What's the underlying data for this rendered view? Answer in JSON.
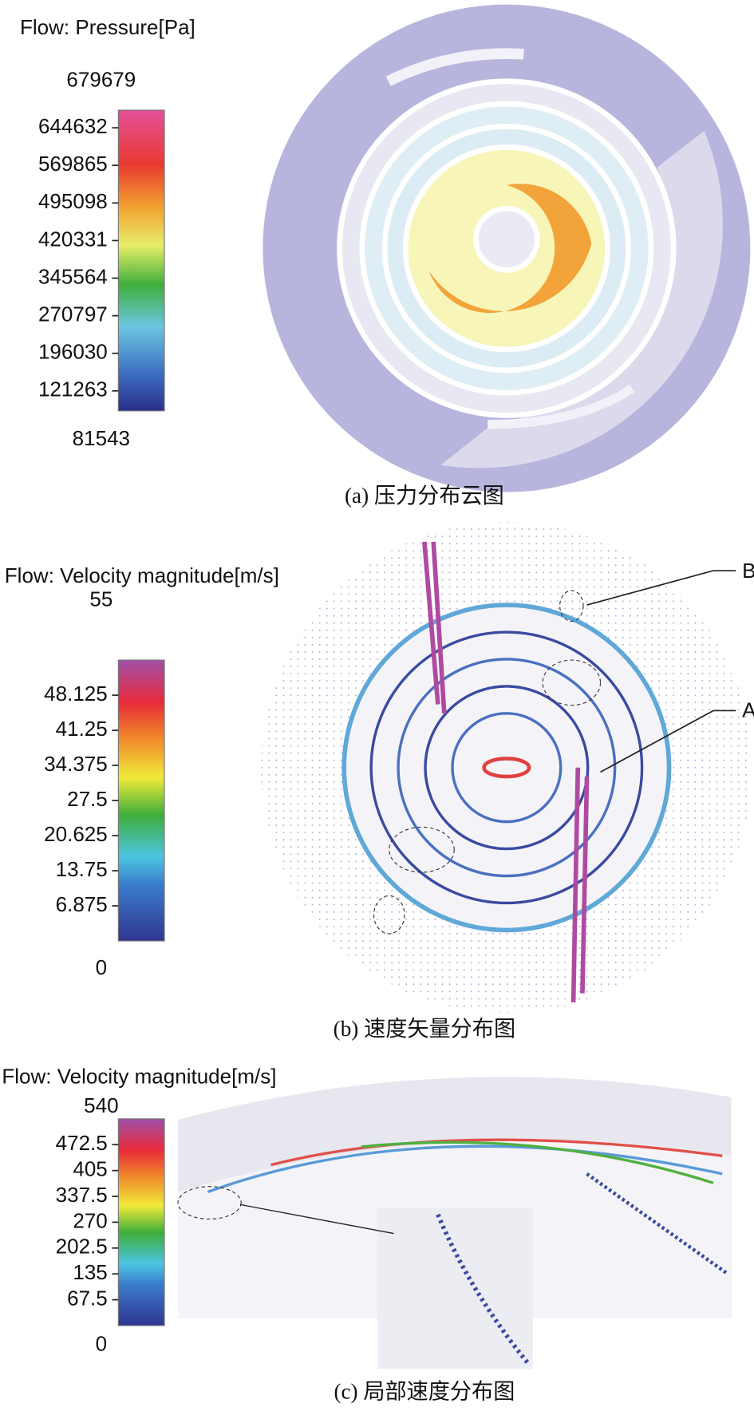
{
  "panels": [
    {
      "title": "Flow: Pressure[Pa]",
      "max": 679679,
      "min": 81543,
      "ticks": [
        644632,
        569865,
        495098,
        420331,
        345564,
        270797,
        196030,
        121263
      ],
      "caption": "(a) 压力分布云图"
    },
    {
      "title": "Flow: Velocity magnitude[m/s]",
      "max": 55,
      "min": 0,
      "ticks": [
        48.125,
        41.25,
        34.375,
        27.5,
        20.625,
        13.75,
        6.875
      ],
      "caption": "(b) 速度矢量分布图",
      "annotations": [
        "B",
        "A"
      ]
    },
    {
      "title": "Flow: Velocity magnitude[m/s]",
      "max": 540,
      "min": 0,
      "ticks": [
        472.5,
        405,
        337.5,
        270,
        202.5,
        135,
        67.5
      ],
      "caption": "(c) 局部速度分布图"
    }
  ]
}
